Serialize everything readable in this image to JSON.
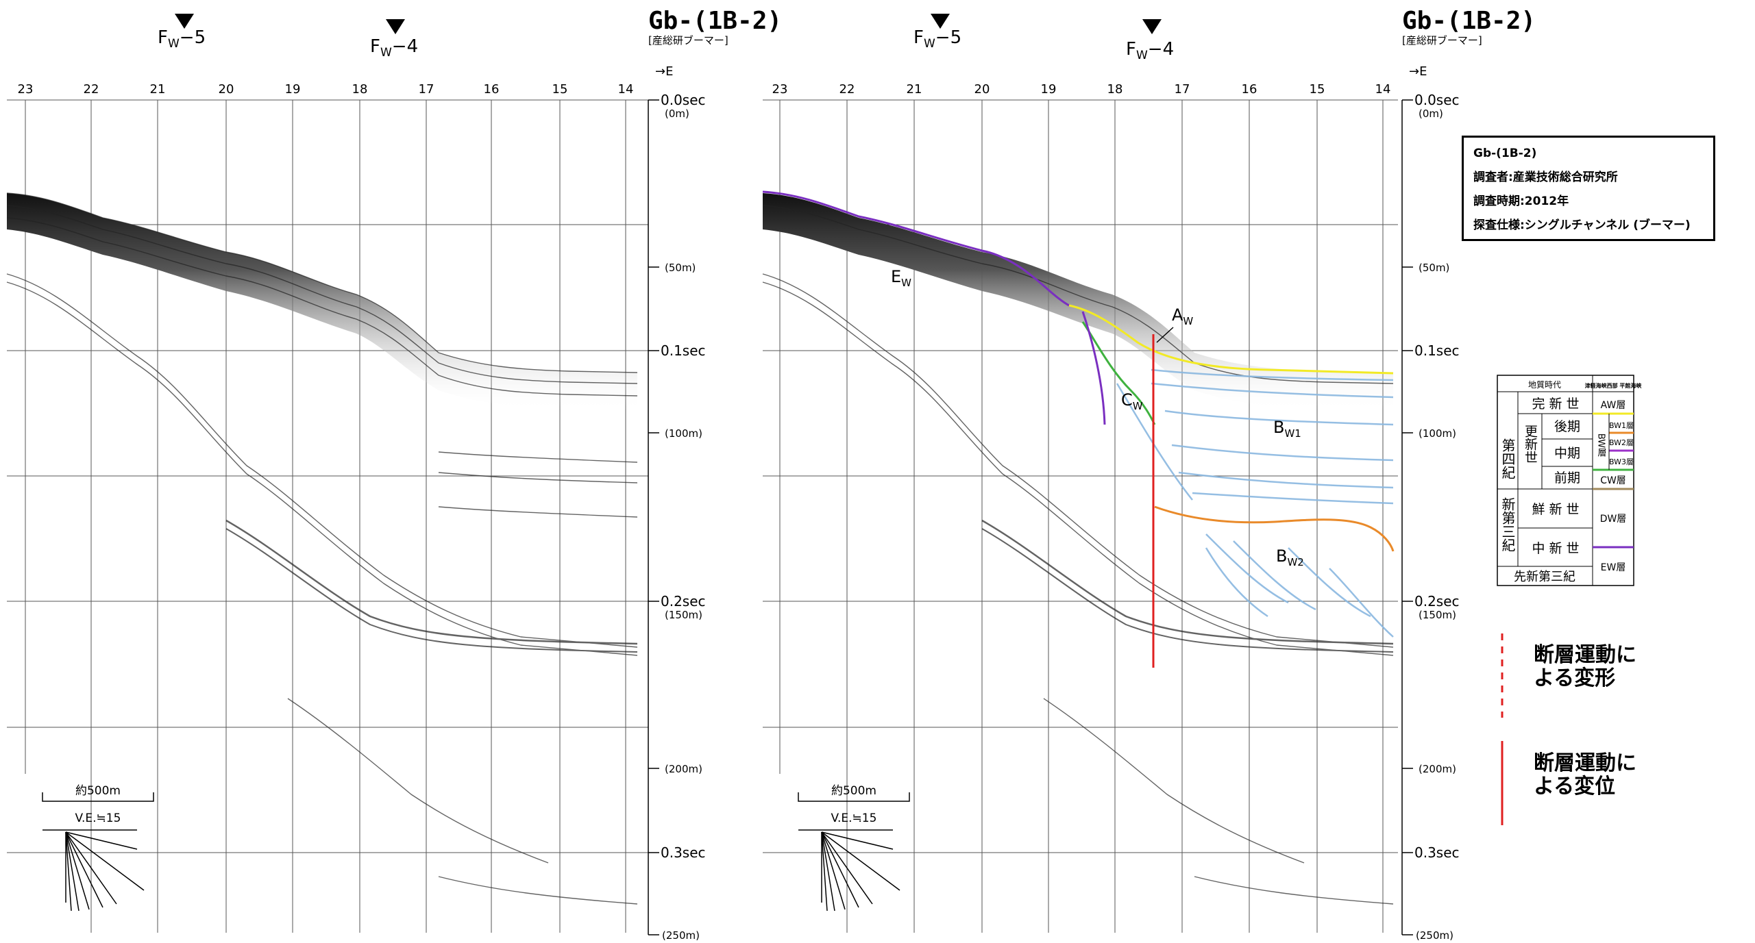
{
  "sections": [
    {
      "id": "left",
      "title": "Gb-(1B-2)",
      "subtitle": "[産総研ブーマー]",
      "direction": "→E",
      "faults": [
        {
          "label_main": "F",
          "label_sub": "W",
          "label_tail": "−5",
          "x_tick": 20.6
        },
        {
          "label_main": "F",
          "label_sub": "W",
          "label_tail": "−4",
          "x_tick": 17.6
        }
      ],
      "x_ticks": [
        "23",
        "22",
        "21",
        "20",
        "19",
        "18",
        "17",
        "16",
        "15",
        "14"
      ],
      "scale_label": "約500m",
      "ve_label": "V.E.≒15",
      "interpreted": false
    },
    {
      "id": "right",
      "title": "Gb-(1B-2)",
      "subtitle": "[産総研ブーマー]",
      "direction": "→E",
      "faults": [
        {
          "label_main": "F",
          "label_sub": "W",
          "label_tail": "−5",
          "x_tick": 20.6
        },
        {
          "label_main": "F",
          "label_sub": "W",
          "label_tail": "−4",
          "x_tick": 17.6
        }
      ],
      "x_ticks": [
        "23",
        "22",
        "21",
        "20",
        "19",
        "18",
        "17",
        "16",
        "15",
        "14"
      ],
      "scale_label": "約500m",
      "ve_label": "V.E.≒15",
      "interpreted": true
    }
  ],
  "depth_axis": [
    {
      "sec": "0.0sec",
      "m": "(0m)"
    },
    {
      "sec": "",
      "m": "(50m)"
    },
    {
      "sec": "0.1sec",
      "m": ""
    },
    {
      "sec": "",
      "m": "(100m)"
    },
    {
      "sec": "0.2sec",
      "m": "(150m)"
    },
    {
      "sec": "",
      "m": "(200m)"
    },
    {
      "sec": "0.3sec",
      "m": ""
    },
    {
      "sec": "",
      "m": "(250m)"
    }
  ],
  "unit_labels": {
    "ew": {
      "main": "E",
      "sub": "W"
    },
    "aw": {
      "main": "A",
      "sub": "W"
    },
    "cw": {
      "main": "C",
      "sub": "W"
    },
    "bw1": {
      "main": "B",
      "sub": "W1"
    },
    "bw2": {
      "main": "B",
      "sub": "W2"
    }
  },
  "info_box": {
    "title": "Gb-(1B-2)",
    "surveyor": "調査者:産業技術総合研究所",
    "period": "調査時期:2012年",
    "spec": "探査仕様:シングルチャンネル (ブーマー)"
  },
  "strat_table": {
    "header_left": "地質時代",
    "header_right": "津軽海峡西部 平館海峡",
    "rows": {
      "quaternary": "第四紀",
      "holocene": "完 新 世",
      "pleistocene": "更新世",
      "late": "後期",
      "middle": "中期",
      "early": "前期",
      "neogene": "新第三紀",
      "pliocene": "鮮 新 世",
      "miocene": "中 新 世",
      "preneogene": "先新第三紀"
    },
    "layers": {
      "aw": "AW層",
      "bw": "BW層",
      "bw1": "BW1層",
      "bw2": "BW2層",
      "bw3": "BW3層",
      "cw": "CW層",
      "dw": "DW層",
      "ew": "EW層"
    },
    "colors": {
      "aw": "#f2ea25",
      "bw1": "#e98a2a",
      "bw2": "#9b30c8",
      "bw3": "#3fb23f",
      "cw": "#a08a5c",
      "ew": "#7a2fc0"
    }
  },
  "legend": {
    "dashed": "断層運動に\nよる変形",
    "solid": "断層運動に\nよる変位",
    "color": "#e02020"
  }
}
